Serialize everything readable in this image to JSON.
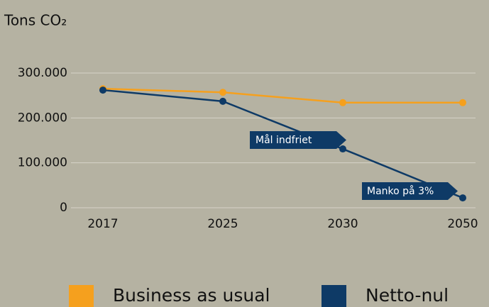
{
  "chart_data": {
    "type": "line",
    "ylabel": "Tons CO₂",
    "categories": [
      "2017",
      "2025",
      "2030",
      "2050"
    ],
    "series": [
      {
        "name": "Business as usual",
        "color": "#f5a01e",
        "values": [
          265000,
          257000,
          234000,
          234000
        ]
      },
      {
        "name": "Netto-nul",
        "color": "#0e3a66",
        "values": [
          262000,
          237000,
          131000,
          22000
        ]
      }
    ],
    "ylim": [
      0,
      300000
    ],
    "yticks": [
      0,
      {
        "value": 100000,
        "label": "100.000"
      },
      {
        "value": 200000,
        "label": "200.000"
      },
      {
        "value": 300000,
        "label": "300.000"
      }
    ],
    "grid": true,
    "legend": "bottom",
    "annotations": [
      "Mål indfriet",
      "Manko på 3%"
    ]
  }
}
